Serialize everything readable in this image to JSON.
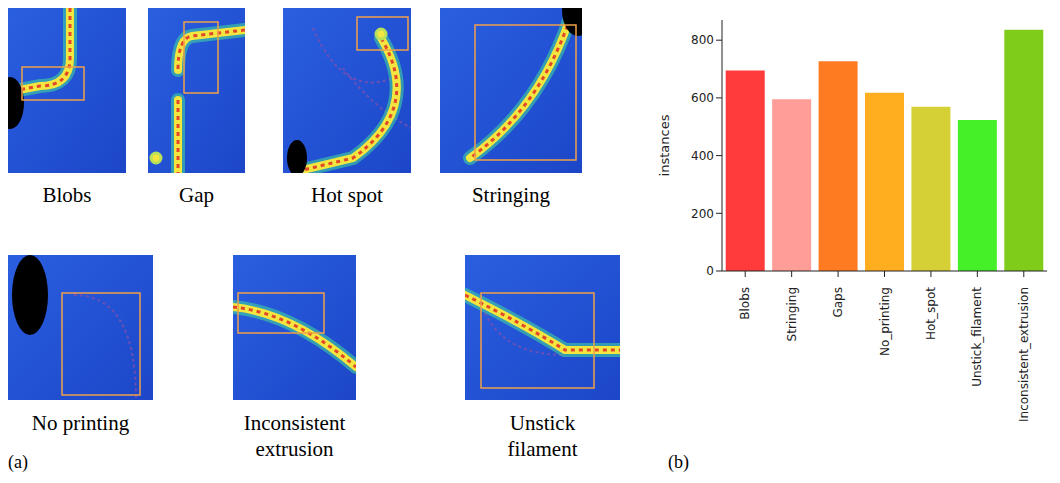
{
  "panel_a": {
    "letter": "(a)",
    "images": [
      "Blobs",
      "Gap",
      "Hot spot",
      "Stringing",
      "No printing",
      "Inconsistent extrusion",
      "Unstick filament"
    ]
  },
  "panel_b": {
    "letter": "(b)"
  },
  "chart_data": {
    "type": "bar",
    "y_label": "instances",
    "categories": [
      "Blobs",
      "Stringing",
      "Gaps",
      "No_printing",
      "Hot_spot",
      "Unstick_filament",
      "Inconsistent_extrusion"
    ],
    "values": [
      695,
      595,
      727,
      618,
      569,
      523,
      836
    ],
    "colors": [
      "#ff3b3b",
      "#ff9e99",
      "#ff7b22",
      "#ffae20",
      "#d4d035",
      "#45f028",
      "#80cc1a"
    ],
    "ylim": [
      0,
      870
    ],
    "yticks": [
      0,
      200,
      400,
      600,
      800
    ],
    "grid": false
  }
}
